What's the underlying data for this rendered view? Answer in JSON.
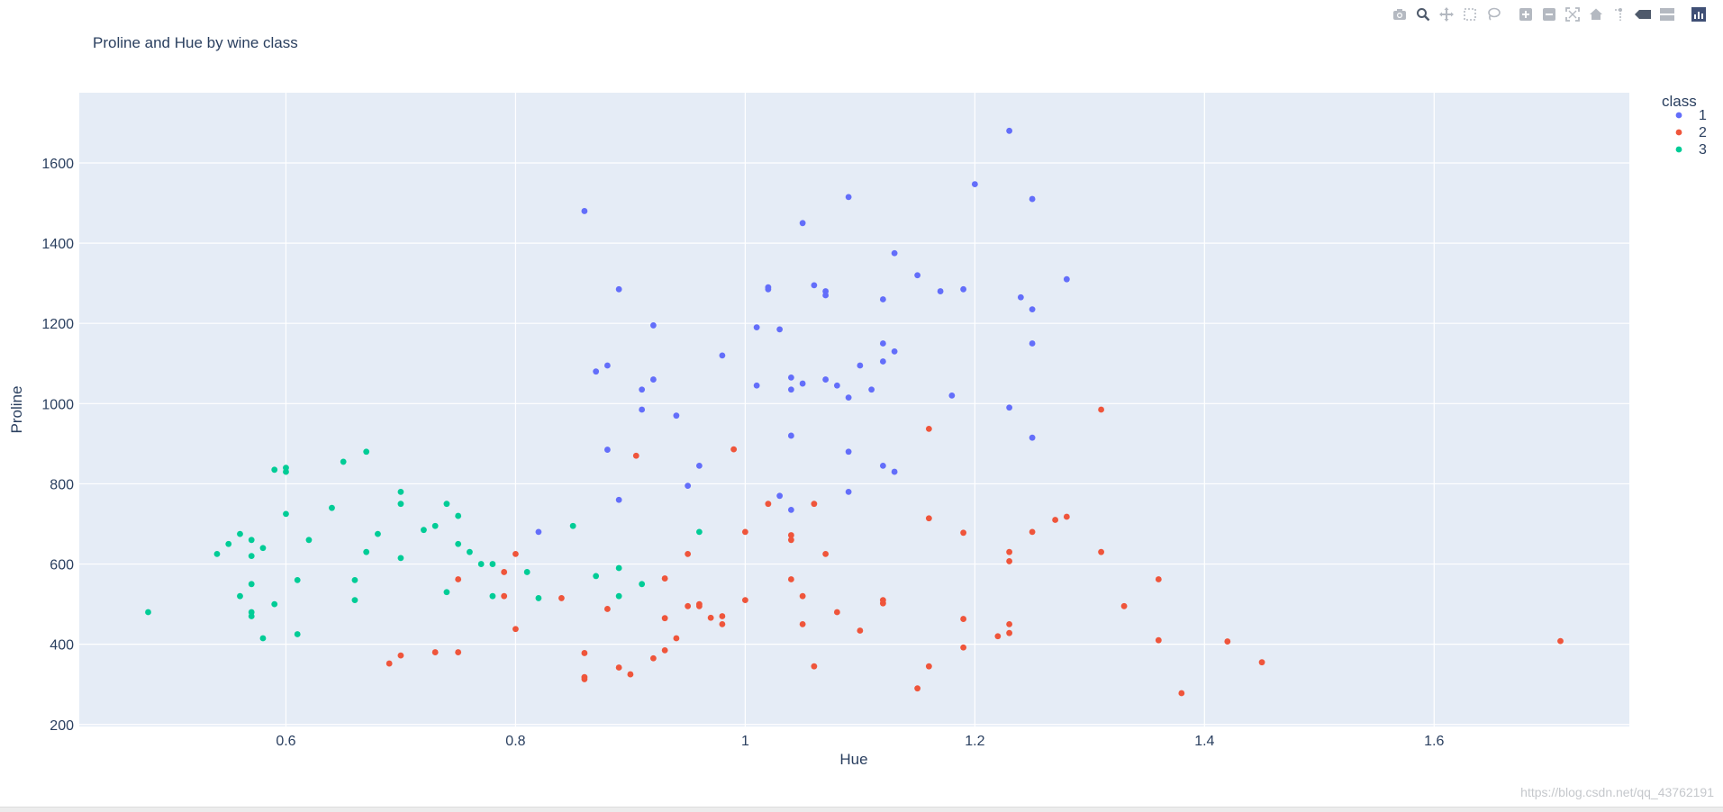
{
  "toolbar": {
    "buttons": [
      {
        "name": "download-plot-button",
        "icon": "camera-icon"
      },
      {
        "name": "zoom-button",
        "icon": "magnifier-icon"
      },
      {
        "name": "pan-button",
        "icon": "pan-icon"
      },
      {
        "name": "box-select-button",
        "icon": "box-select-icon"
      },
      {
        "name": "lasso-select-button",
        "icon": "lasso-icon"
      },
      {
        "name": "zoom-in-button",
        "icon": "plus-square-icon"
      },
      {
        "name": "zoom-out-button",
        "icon": "minus-square-icon"
      },
      {
        "name": "autoscale-button",
        "icon": "autoscale-icon"
      },
      {
        "name": "reset-axes-button",
        "icon": "home-icon"
      },
      {
        "name": "spike-lines-button",
        "icon": "spike-icon"
      },
      {
        "name": "hover-closest-button",
        "icon": "hover-closest-icon"
      },
      {
        "name": "hover-compare-button",
        "icon": "hover-compare-icon"
      },
      {
        "name": "plotly-logo-button",
        "icon": "plotly-logo-icon"
      }
    ]
  },
  "watermark": "https://blog.csdn.net/qq_43762191",
  "colors": {
    "plot_bg": "#e5ecf6",
    "grid": "#ffffff",
    "text": "#2a3f5f",
    "class1": "#636efa",
    "class2": "#ef553b",
    "class3": "#00cc96"
  },
  "chart_data": {
    "type": "scatter",
    "title": "Proline and Hue by wine class",
    "xlabel": "Hue",
    "ylabel": "Proline",
    "xlim": [
      0.42,
      1.77
    ],
    "ylim": [
      195,
      1775
    ],
    "xticks": [
      0.6,
      0.8,
      1,
      1.2,
      1.4,
      1.6
    ],
    "yticks": [
      200,
      400,
      600,
      800,
      1000,
      1200,
      1400,
      1600
    ],
    "grid": true,
    "legend": {
      "title": "class",
      "position": "top-right"
    },
    "series": [
      {
        "name": "1",
        "points": [
          [
            0.86,
            1480
          ],
          [
            0.89,
            1285
          ],
          [
            0.92,
            1195
          ],
          [
            0.87,
            1080
          ],
          [
            0.88,
            1095
          ],
          [
            0.92,
            1060
          ],
          [
            0.91,
            1035
          ],
          [
            0.91,
            985
          ],
          [
            0.94,
            970
          ],
          [
            0.88,
            885
          ],
          [
            0.96,
            845
          ],
          [
            0.95,
            795
          ],
          [
            0.89,
            760
          ],
          [
            0.82,
            680
          ],
          [
            0.98,
            1120
          ],
          [
            1.01,
            1190
          ],
          [
            1.01,
            1045
          ],
          [
            1.02,
            1290
          ],
          [
            1.02,
            1285
          ],
          [
            1.03,
            1185
          ],
          [
            1.04,
            1065
          ],
          [
            1.04,
            1035
          ],
          [
            1.05,
            1050
          ],
          [
            1.05,
            1450
          ],
          [
            1.06,
            1295
          ],
          [
            1.07,
            1280
          ],
          [
            1.07,
            1270
          ],
          [
            1.07,
            1060
          ],
          [
            1.08,
            1045
          ],
          [
            1.09,
            1015
          ],
          [
            1.09,
            1515
          ],
          [
            1.09,
            880
          ],
          [
            1.09,
            780
          ],
          [
            1.04,
            920
          ],
          [
            1.03,
            770
          ],
          [
            1.04,
            735
          ],
          [
            1.1,
            1095
          ],
          [
            1.11,
            1035
          ],
          [
            1.12,
            1260
          ],
          [
            1.12,
            1150
          ],
          [
            1.12,
            1105
          ],
          [
            1.12,
            845
          ],
          [
            1.13,
            1375
          ],
          [
            1.13,
            1130
          ],
          [
            1.13,
            830
          ],
          [
            1.15,
            1320
          ],
          [
            1.17,
            1280
          ],
          [
            1.18,
            1020
          ],
          [
            1.19,
            1285
          ],
          [
            1.2,
            1547
          ],
          [
            1.23,
            1680
          ],
          [
            1.23,
            990
          ],
          [
            1.24,
            1265
          ],
          [
            1.25,
            1510
          ],
          [
            1.25,
            1235
          ],
          [
            1.25,
            1150
          ],
          [
            1.25,
            915
          ],
          [
            1.28,
            1310
          ]
        ]
      },
      {
        "name": "2",
        "points": [
          [
            0.69,
            352
          ],
          [
            0.7,
            372
          ],
          [
            0.73,
            380
          ],
          [
            0.75,
            380
          ],
          [
            0.75,
            562
          ],
          [
            0.79,
            520
          ],
          [
            0.79,
            580
          ],
          [
            0.8,
            438
          ],
          [
            0.8,
            625
          ],
          [
            0.84,
            515
          ],
          [
            0.86,
            378
          ],
          [
            0.86,
            318
          ],
          [
            0.86,
            313
          ],
          [
            0.88,
            488
          ],
          [
            0.89,
            342
          ],
          [
            0.9,
            325
          ],
          [
            0.905,
            870
          ],
          [
            0.92,
            365
          ],
          [
            0.93,
            385
          ],
          [
            0.93,
            465
          ],
          [
            0.93,
            564
          ],
          [
            0.94,
            415
          ],
          [
            0.95,
            495
          ],
          [
            0.95,
            625
          ],
          [
            0.96,
            500
          ],
          [
            0.96,
            495
          ],
          [
            0.97,
            466
          ],
          [
            0.98,
            470
          ],
          [
            0.98,
            450
          ],
          [
            0.99,
            886
          ],
          [
            1.0,
            680
          ],
          [
            1.0,
            510
          ],
          [
            1.02,
            750
          ],
          [
            1.04,
            672
          ],
          [
            1.04,
            660
          ],
          [
            1.04,
            562
          ],
          [
            1.05,
            520
          ],
          [
            1.05,
            450
          ],
          [
            1.06,
            345
          ],
          [
            1.06,
            750
          ],
          [
            1.07,
            625
          ],
          [
            1.08,
            480
          ],
          [
            1.1,
            434
          ],
          [
            1.12,
            510
          ],
          [
            1.12,
            502
          ],
          [
            1.15,
            290
          ],
          [
            1.16,
            345
          ],
          [
            1.16,
            714
          ],
          [
            1.16,
            937
          ],
          [
            1.19,
            392
          ],
          [
            1.19,
            463
          ],
          [
            1.19,
            678
          ],
          [
            1.22,
            420
          ],
          [
            1.23,
            630
          ],
          [
            1.23,
            607
          ],
          [
            1.23,
            450
          ],
          [
            1.23,
            428
          ],
          [
            1.25,
            680
          ],
          [
            1.27,
            710
          ],
          [
            1.28,
            718
          ],
          [
            1.31,
            985
          ],
          [
            1.31,
            630
          ],
          [
            1.33,
            495
          ],
          [
            1.36,
            562
          ],
          [
            1.36,
            410
          ],
          [
            1.38,
            278
          ],
          [
            1.42,
            407
          ],
          [
            1.45,
            355
          ],
          [
            1.71,
            408
          ]
        ]
      },
      {
        "name": "3",
        "points": [
          [
            0.48,
            480
          ],
          [
            0.54,
            625
          ],
          [
            0.55,
            650
          ],
          [
            0.56,
            675
          ],
          [
            0.56,
            520
          ],
          [
            0.57,
            660
          ],
          [
            0.57,
            620
          ],
          [
            0.57,
            550
          ],
          [
            0.57,
            480
          ],
          [
            0.57,
            470
          ],
          [
            0.58,
            640
          ],
          [
            0.58,
            415
          ],
          [
            0.59,
            835
          ],
          [
            0.59,
            500
          ],
          [
            0.6,
            840
          ],
          [
            0.6,
            830
          ],
          [
            0.6,
            725
          ],
          [
            0.61,
            560
          ],
          [
            0.61,
            425
          ],
          [
            0.62,
            660
          ],
          [
            0.64,
            740
          ],
          [
            0.65,
            855
          ],
          [
            0.66,
            560
          ],
          [
            0.66,
            510
          ],
          [
            0.67,
            880
          ],
          [
            0.67,
            630
          ],
          [
            0.68,
            675
          ],
          [
            0.7,
            780
          ],
          [
            0.7,
            750
          ],
          [
            0.7,
            615
          ],
          [
            0.72,
            685
          ],
          [
            0.73,
            695
          ],
          [
            0.74,
            750
          ],
          [
            0.74,
            530
          ],
          [
            0.75,
            720
          ],
          [
            0.75,
            650
          ],
          [
            0.76,
            630
          ],
          [
            0.77,
            600
          ],
          [
            0.78,
            600
          ],
          [
            0.78,
            520
          ],
          [
            0.81,
            580
          ],
          [
            0.82,
            515
          ],
          [
            0.85,
            695
          ],
          [
            0.87,
            570
          ],
          [
            0.89,
            590
          ],
          [
            0.89,
            520
          ],
          [
            0.91,
            550
          ],
          [
            0.96,
            680
          ]
        ]
      }
    ]
  }
}
